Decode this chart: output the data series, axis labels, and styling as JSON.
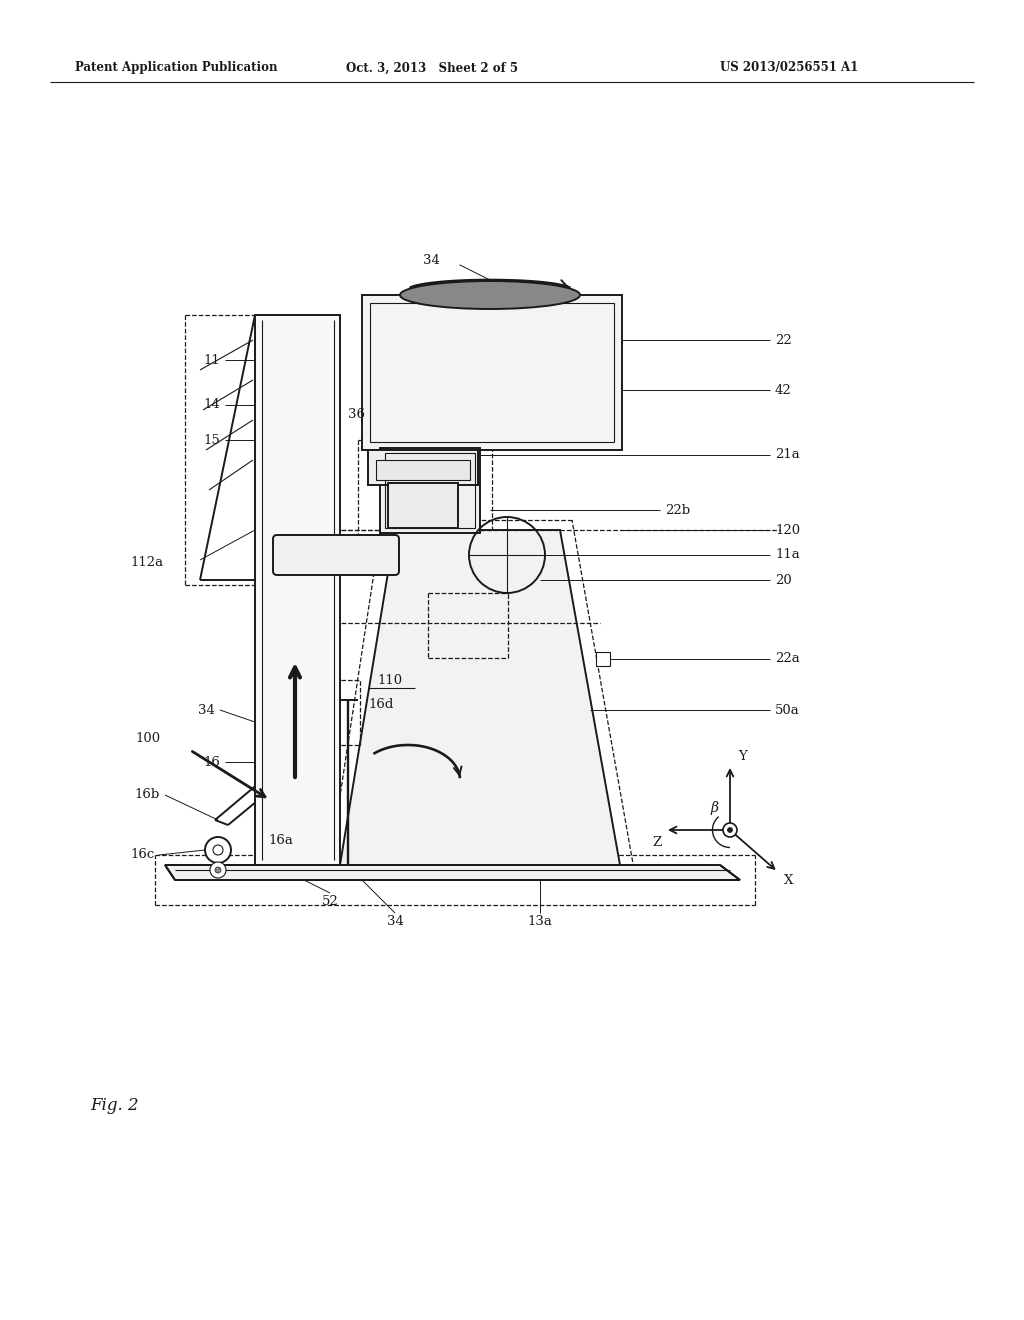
{
  "bg_color": "#ffffff",
  "line_color": "#1a1a1a",
  "header_left": "Patent Application Publication",
  "header_center": "Oct. 3, 2013   Sheet 2 of 5",
  "header_right": "US 2013/0256551 A1",
  "fig_label": "Fig. 2",
  "lw_main": 1.4,
  "lw_thin": 0.8,
  "lw_dashed": 0.9,
  "lw_label": 0.7,
  "label_fs": 9.5
}
